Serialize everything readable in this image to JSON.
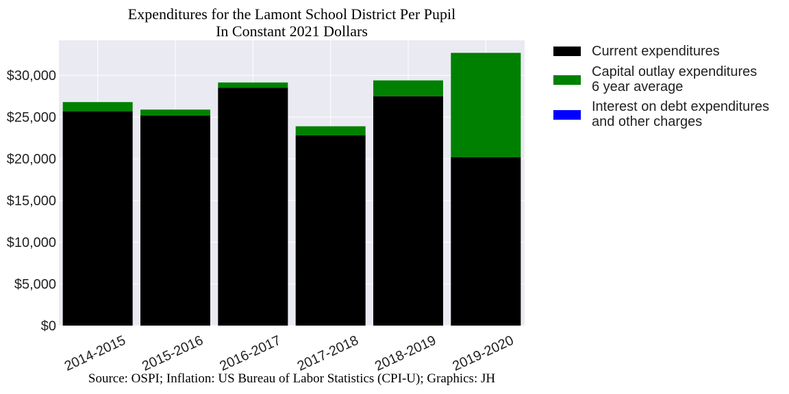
{
  "title": "Expenditures for the Lamont School District Per Pupil\nIn Constant 2021 Dollars",
  "source": "Source: OSPI; Inflation: US Bureau of Labor Statistics (CPI-U); Graphics: JH",
  "chart_data": {
    "type": "bar",
    "stacked": true,
    "title": "Expenditures for the Lamont School District Per Pupil\nIn Constant 2021 Dollars",
    "categories": [
      "2014-2015",
      "2015-2016",
      "2016-2017",
      "2017-2018",
      "2018-2019",
      "2019-2020"
    ],
    "series": [
      {
        "name": "Current expenditures",
        "color": "#000000",
        "values": [
          25700,
          25200,
          28500,
          22800,
          27500,
          20200
        ]
      },
      {
        "name": "Capital outlay expenditures\n6 year average",
        "color": "#008000",
        "values": [
          1100,
          700,
          650,
          1100,
          1900,
          12500
        ]
      },
      {
        "name": "Interest on debt expenditures\nand other charges",
        "color": "#0000ff",
        "values": [
          0,
          0,
          0,
          0,
          0,
          0
        ]
      }
    ],
    "yticks": [
      0,
      5000,
      10000,
      15000,
      20000,
      25000,
      30000
    ],
    "ytick_labels": [
      "$0",
      "$5,000",
      "$10,000",
      "$15,000",
      "$20,000",
      "$25,000",
      "$30,000"
    ],
    "ylim": [
      0,
      34200
    ],
    "xlabel": "",
    "ylabel": "",
    "grid": true,
    "legend_position": "outside-right"
  }
}
